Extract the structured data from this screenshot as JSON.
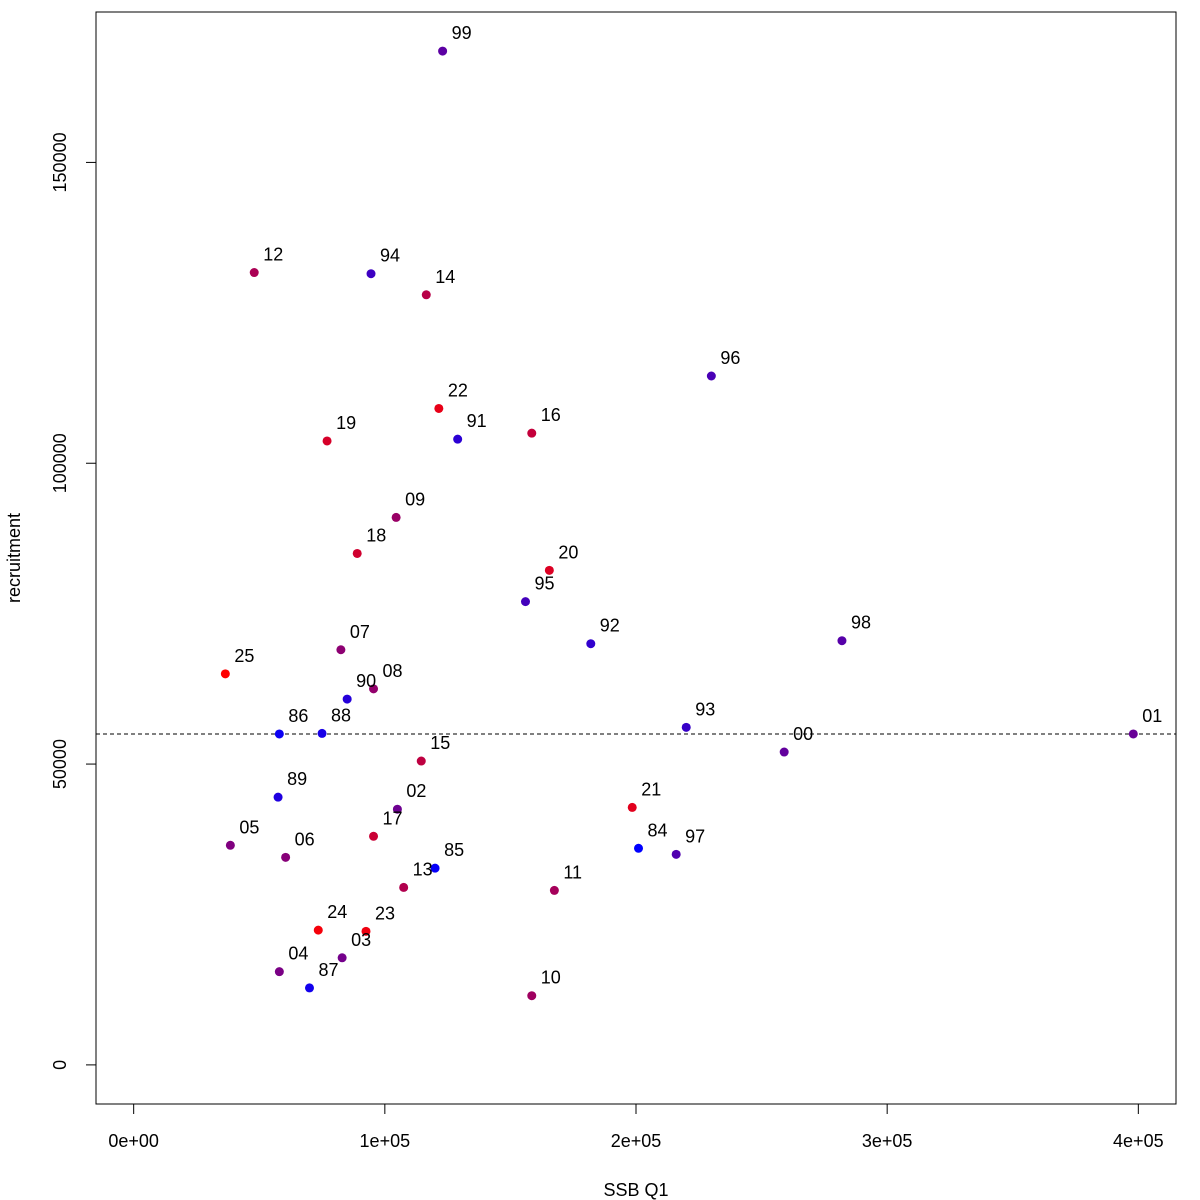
{
  "chart_data": {
    "type": "scatter",
    "title": "",
    "xlabel": "SSB Q1",
    "ylabel": "recruitment",
    "xlim": [
      -15000,
      415000
    ],
    "ylim": [
      -6500,
      175000
    ],
    "x_ticks": [
      0,
      100000,
      200000,
      300000,
      400000
    ],
    "x_tick_labels": [
      "0e+00",
      "1e+05",
      "2e+05",
      "3e+05",
      "4e+05"
    ],
    "y_ticks": [
      0,
      50000,
      100000,
      150000
    ],
    "y_tick_labels": [
      "0",
      "50000",
      "100000",
      "150000"
    ],
    "reference_line_y": 55000,
    "grid": false,
    "points": [
      {
        "label": "84",
        "x": 201000,
        "y": 36000,
        "color": "#0000ff"
      },
      {
        "label": "85",
        "x": 120000,
        "y": 32700,
        "color": "#0600f9"
      },
      {
        "label": "86",
        "x": 58000,
        "y": 55000,
        "color": "#0c00f3"
      },
      {
        "label": "87",
        "x": 70000,
        "y": 12800,
        "color": "#1200ed"
      },
      {
        "label": "88",
        "x": 75000,
        "y": 55100,
        "color": "#1800e7"
      },
      {
        "label": "89",
        "x": 57500,
        "y": 44500,
        "color": "#1f00e0"
      },
      {
        "label": "90",
        "x": 85000,
        "y": 60800,
        "color": "#2500da"
      },
      {
        "label": "91",
        "x": 129000,
        "y": 104000,
        "color": "#2b00d4"
      },
      {
        "label": "92",
        "x": 182000,
        "y": 70000,
        "color": "#3100ce"
      },
      {
        "label": "93",
        "x": 220000,
        "y": 56100,
        "color": "#3700c8"
      },
      {
        "label": "94",
        "x": 94500,
        "y": 131500,
        "color": "#3d00c2"
      },
      {
        "label": "95",
        "x": 156000,
        "y": 77000,
        "color": "#4300bc"
      },
      {
        "label": "96",
        "x": 230000,
        "y": 114500,
        "color": "#4900b6"
      },
      {
        "label": "97",
        "x": 216000,
        "y": 35000,
        "color": "#5000af"
      },
      {
        "label": "98",
        "x": 282000,
        "y": 70500,
        "color": "#5600a9"
      },
      {
        "label": "99",
        "x": 123000,
        "y": 168500,
        "color": "#5c00a3"
      },
      {
        "label": "00",
        "x": 259000,
        "y": 52000,
        "color": "#62009d"
      },
      {
        "label": "01",
        "x": 398000,
        "y": 55000,
        "color": "#680097"
      },
      {
        "label": "02",
        "x": 105000,
        "y": 42500,
        "color": "#6e0091"
      },
      {
        "label": "03",
        "x": 83000,
        "y": 17800,
        "color": "#74008b"
      },
      {
        "label": "04",
        "x": 58000,
        "y": 15500,
        "color": "#7a0085"
      },
      {
        "label": "05",
        "x": 38500,
        "y": 36500,
        "color": "#80007f"
      },
      {
        "label": "06",
        "x": 60500,
        "y": 34500,
        "color": "#870078"
      },
      {
        "label": "07",
        "x": 82500,
        "y": 69000,
        "color": "#8d0072"
      },
      {
        "label": "08",
        "x": 95500,
        "y": 62500,
        "color": "#93006c"
      },
      {
        "label": "09",
        "x": 104500,
        "y": 91000,
        "color": "#990066"
      },
      {
        "label": "10",
        "x": 158500,
        "y": 11500,
        "color": "#9f0060"
      },
      {
        "label": "11",
        "x": 167500,
        "y": 29000,
        "color": "#a5005a"
      },
      {
        "label": "12",
        "x": 48000,
        "y": 131700,
        "color": "#ab0054"
      },
      {
        "label": "13",
        "x": 107500,
        "y": 29500,
        "color": "#b1004e"
      },
      {
        "label": "14",
        "x": 116500,
        "y": 128000,
        "color": "#b80047"
      },
      {
        "label": "15",
        "x": 114500,
        "y": 50500,
        "color": "#be0041"
      },
      {
        "label": "16",
        "x": 158500,
        "y": 105000,
        "color": "#c4003b"
      },
      {
        "label": "17",
        "x": 95500,
        "y": 38000,
        "color": "#ca0035"
      },
      {
        "label": "18",
        "x": 89000,
        "y": 85000,
        "color": "#d0002f"
      },
      {
        "label": "19",
        "x": 77000,
        "y": 103700,
        "color": "#d60029"
      },
      {
        "label": "20",
        "x": 165500,
        "y": 82200,
        "color": "#dc0023"
      },
      {
        "label": "21",
        "x": 198500,
        "y": 42800,
        "color": "#e2001d"
      },
      {
        "label": "22",
        "x": 121500,
        "y": 109100,
        "color": "#e80017"
      },
      {
        "label": "23",
        "x": 92500,
        "y": 22200,
        "color": "#ef0010"
      },
      {
        "label": "24",
        "x": 73500,
        "y": 22400,
        "color": "#f5000a"
      },
      {
        "label": "25",
        "x": 36500,
        "y": 65000,
        "color": "#ff0000"
      }
    ]
  }
}
